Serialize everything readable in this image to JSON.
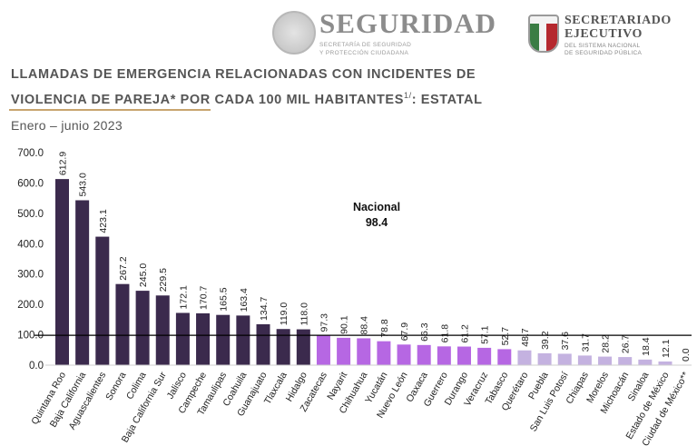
{
  "header": {
    "seguridad_word": "SEGURIDAD",
    "seguridad_sub1": "SECRETARÍA DE SEGURIDAD",
    "seguridad_sub2": "Y PROTECCIÓN CIUDADANA",
    "secretariado_line1": "SECRETARIADO",
    "secretariado_line2": "EJECUTIVO",
    "secretariado_sub1": "DEL SISTEMA NACIONAL",
    "secretariado_sub2": "DE SEGURIDAD PÚBLICA"
  },
  "title_line1": "LLAMADAS DE EMERGENCIA RELACIONADAS CON INCIDENTES DE",
  "title_line2": "VIOLENCIA DE PAREJA* POR CADA 100 MIL HABITANTES",
  "title_superscript": "1/",
  "title_suffix": ": ESTATAL",
  "subtitle": "Enero – junio 2023",
  "national": {
    "label": "Nacional",
    "value_text": "98.4",
    "value": 98.4
  },
  "colors": {
    "above": "#3b2a4d",
    "mid": "#b667e3",
    "low": "#c4b2e0",
    "zero": "#dddddd"
  },
  "chart_data": {
    "type": "bar",
    "categories": [
      "Quintana Roo",
      "Baja California",
      "Aguascalientes",
      "Sonora",
      "Colima",
      "Baja California Sur",
      "Jalisco",
      "Campeche",
      "Tamaulipas",
      "Coahuila",
      "Guanajuato",
      "Tlaxcala",
      "Hidalgo",
      "Zacatecas",
      "Nayarit",
      "Chihuahua",
      "Yucatán",
      "Nuevo León",
      "Oaxaca",
      "Guerrero",
      "Durango",
      "Veracruz",
      "Tabasco",
      "Querétaro",
      "Puebla",
      "San Luis Potosí",
      "Chiapas",
      "Morelos",
      "Michoacán",
      "Sinaloa",
      "Estado de México",
      "Ciudad de México**"
    ],
    "values": [
      612.9,
      543.0,
      423.1,
      267.2,
      245.0,
      229.5,
      172.1,
      170.7,
      165.5,
      163.4,
      134.7,
      119.0,
      118.0,
      97.3,
      90.1,
      88.4,
      78.8,
      67.9,
      66.3,
      61.8,
      61.2,
      57.1,
      52.7,
      48.7,
      39.2,
      37.6,
      31.7,
      28.2,
      26.7,
      18.4,
      12.1,
      0.0
    ],
    "value_labels": [
      "612.9",
      "543.0",
      "423.1",
      "267.2",
      "245.0",
      "229.5",
      "172.1",
      "170.7",
      "165.5",
      "163.4",
      "134.7",
      "119.0",
      "118.0",
      "97.3",
      "90.1",
      "88.4",
      "78.8",
      "67.9",
      "66.3",
      "61.8",
      "61.2",
      "57.1",
      "52.7",
      "48.7",
      "39.2",
      "37.6",
      "31.7",
      "28.2",
      "26.7",
      "18.4",
      "12.1",
      "0.0"
    ],
    "color_groups": [
      "above",
      "above",
      "above",
      "above",
      "above",
      "above",
      "above",
      "above",
      "above",
      "above",
      "above",
      "above",
      "above",
      "mid",
      "mid",
      "mid",
      "mid",
      "mid",
      "mid",
      "mid",
      "mid",
      "mid",
      "mid",
      "low",
      "low",
      "low",
      "low",
      "low",
      "low",
      "low",
      "low",
      "zero"
    ],
    "yticks": [
      "0.0",
      "100.0",
      "200.0",
      "300.0",
      "400.0",
      "500.0",
      "600.0",
      "700.0"
    ],
    "ylim": [
      0,
      700
    ],
    "reference_line": 98.4,
    "title": "LLAMADAS DE EMERGENCIA RELACIONADAS CON INCIDENTES DE VIOLENCIA DE PAREJA* POR CADA 100 MIL HABITANTES: ESTATAL",
    "xlabel": "",
    "ylabel": ""
  }
}
